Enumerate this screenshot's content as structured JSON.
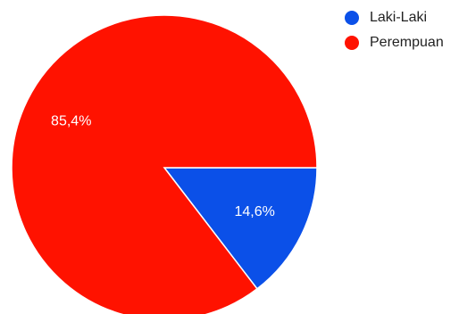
{
  "chart_data": {
    "type": "pie",
    "categories": [
      "Laki-Laki",
      "Perempuan"
    ],
    "values": [
      14.6,
      85.4
    ],
    "labels": [
      "14,6%",
      "85,4%"
    ],
    "colors": [
      "#0b50e8",
      "#ff1200"
    ],
    "legend": {
      "placement": "top-right",
      "items": [
        {
          "label": "Laki-Laki",
          "color": "#0b50e8"
        },
        {
          "label": "Perempuan",
          "color": "#ff1200"
        }
      ]
    }
  }
}
